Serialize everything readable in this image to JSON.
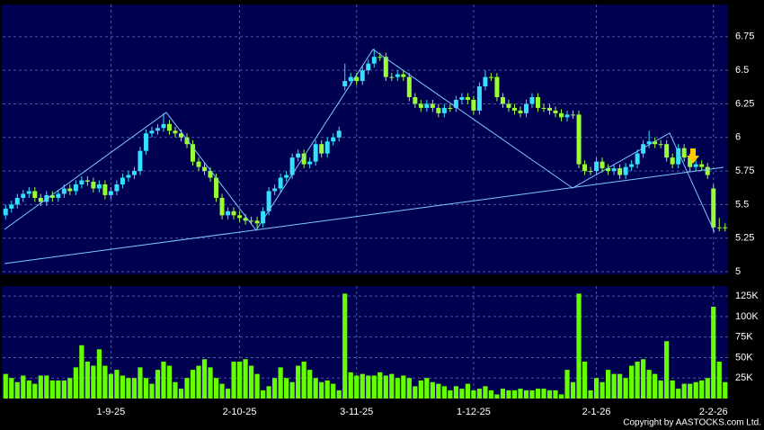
{
  "chart_data": {
    "type": "candlestick",
    "categories": [
      null,
      null,
      null,
      null,
      null,
      null,
      null,
      null,
      null,
      null,
      null,
      null,
      null,
      null,
      null,
      null,
      null,
      null,
      "1-9-25",
      null,
      null,
      null,
      null,
      null,
      null,
      null,
      null,
      null,
      null,
      null,
      null,
      null,
      null,
      null,
      null,
      null,
      null,
      null,
      null,
      null,
      "2-10-25",
      null,
      null,
      null,
      null,
      null,
      null,
      null,
      null,
      null,
      null,
      null,
      null,
      null,
      null,
      null,
      null,
      null,
      null,
      null,
      "3-11-25",
      null,
      null,
      null,
      null,
      null,
      null,
      null,
      null,
      null,
      null,
      null,
      null,
      null,
      null,
      null,
      null,
      null,
      null,
      null,
      "1-12-25",
      null,
      null,
      null,
      null,
      null,
      null,
      null,
      null,
      null,
      null,
      null,
      null,
      null,
      null,
      null,
      null,
      null,
      null,
      null,
      null,
      "2-1-26",
      null,
      null,
      null,
      null,
      null,
      null,
      null,
      null,
      null,
      null,
      null,
      null,
      null,
      null,
      null,
      null,
      null,
      null,
      null,
      "2-2-26",
      null,
      null
    ],
    "open": [
      5.42,
      5.47,
      5.5,
      5.55,
      5.58,
      5.6,
      5.55,
      5.52,
      5.57,
      5.55,
      5.58,
      5.62,
      5.6,
      5.65,
      5.68,
      5.67,
      5.62,
      5.65,
      5.57,
      5.6,
      5.65,
      5.7,
      5.72,
      5.75,
      5.9,
      6.03,
      6.05,
      6.07,
      6.1,
      6.05,
      6.03,
      6.0,
      5.95,
      5.82,
      5.78,
      5.75,
      5.7,
      5.55,
      5.42,
      5.45,
      5.42,
      5.4,
      5.38,
      5.38,
      5.36,
      5.45,
      5.6,
      5.62,
      5.7,
      5.72,
      5.85,
      5.88,
      5.8,
      5.82,
      5.95,
      5.88,
      5.97,
      6.0,
      6.38,
      6.42,
      6.45,
      6.42,
      6.5,
      6.55,
      6.6,
      6.6,
      6.45,
      6.45,
      6.47,
      6.45,
      6.3,
      6.25,
      6.22,
      6.25,
      6.22,
      6.18,
      6.22,
      6.22,
      6.28,
      6.3,
      6.28,
      6.2,
      6.38,
      6.45,
      6.45,
      6.3,
      6.25,
      6.22,
      6.2,
      6.18,
      6.25,
      6.3,
      6.22,
      6.22,
      6.2,
      6.18,
      6.15,
      6.17,
      6.17,
      5.8,
      5.75,
      5.75,
      5.82,
      5.77,
      5.75,
      5.77,
      5.72,
      5.78,
      5.8,
      5.88,
      5.95,
      5.97,
      5.95,
      5.95,
      5.85,
      5.8,
      5.92,
      5.85,
      5.78,
      5.8,
      5.78,
      5.62,
      5.33,
      5.33
    ],
    "high": [
      5.5,
      5.53,
      5.58,
      5.61,
      5.63,
      5.63,
      5.58,
      5.6,
      5.6,
      5.61,
      5.65,
      5.65,
      5.68,
      5.71,
      5.71,
      5.7,
      5.68,
      5.68,
      5.63,
      5.68,
      5.73,
      5.75,
      5.78,
      5.93,
      6.06,
      6.08,
      6.1,
      6.18,
      6.13,
      6.08,
      6.06,
      6.03,
      5.98,
      5.85,
      5.81,
      5.78,
      5.73,
      5.58,
      5.48,
      5.48,
      5.45,
      5.43,
      5.41,
      5.41,
      5.48,
      5.63,
      5.65,
      5.73,
      5.75,
      5.88,
      5.91,
      5.91,
      5.85,
      5.98,
      5.98,
      6.0,
      6.03,
      6.08,
      6.55,
      6.48,
      6.48,
      6.53,
      6.58,
      6.66,
      6.63,
      6.63,
      6.48,
      6.5,
      6.5,
      6.48,
      6.33,
      6.28,
      6.28,
      6.28,
      6.25,
      6.25,
      6.25,
      6.31,
      6.33,
      6.33,
      6.31,
      6.41,
      6.5,
      6.48,
      6.48,
      6.33,
      6.28,
      6.25,
      6.23,
      6.28,
      6.33,
      6.33,
      6.25,
      6.25,
      6.23,
      6.21,
      6.2,
      6.2,
      6.2,
      5.83,
      5.78,
      5.85,
      5.85,
      5.8,
      5.8,
      5.8,
      5.81,
      5.83,
      5.91,
      5.98,
      6.05,
      6.0,
      5.98,
      5.98,
      5.88,
      5.95,
      5.95,
      5.88,
      5.83,
      5.83,
      5.81,
      5.65,
      5.4,
      5.36
    ],
    "low": [
      5.39,
      5.44,
      5.47,
      5.52,
      5.55,
      5.52,
      5.49,
      5.49,
      5.52,
      5.52,
      5.55,
      5.57,
      5.57,
      5.62,
      5.64,
      5.59,
      5.59,
      5.54,
      5.54,
      5.57,
      5.62,
      5.67,
      5.69,
      5.72,
      5.87,
      6.0,
      6.02,
      6.04,
      6.02,
      6.0,
      5.97,
      5.92,
      5.79,
      5.75,
      5.72,
      5.67,
      5.52,
      5.39,
      5.39,
      5.39,
      5.37,
      5.35,
      5.35,
      5.32,
      5.33,
      5.42,
      5.57,
      5.59,
      5.67,
      5.69,
      5.82,
      5.77,
      5.77,
      5.79,
      5.85,
      5.85,
      5.94,
      5.97,
      6.35,
      6.39,
      6.39,
      6.39,
      6.47,
      6.52,
      6.57,
      6.42,
      6.42,
      6.42,
      6.42,
      6.27,
      6.22,
      6.19,
      6.19,
      6.19,
      6.15,
      6.15,
      6.19,
      6.19,
      6.25,
      6.25,
      6.17,
      6.17,
      6.35,
      6.42,
      6.27,
      6.22,
      6.19,
      6.17,
      6.15,
      6.15,
      6.22,
      6.19,
      6.19,
      6.17,
      6.15,
      6.12,
      6.12,
      6.14,
      5.77,
      5.72,
      5.72,
      5.72,
      5.74,
      5.72,
      5.72,
      5.69,
      5.69,
      5.75,
      5.77,
      5.85,
      5.92,
      5.92,
      5.92,
      5.82,
      5.77,
      5.77,
      5.82,
      5.75,
      5.75,
      5.75,
      5.69,
      5.3,
      5.3,
      5.3
    ],
    "close": [
      5.47,
      5.5,
      5.55,
      5.58,
      5.6,
      5.55,
      5.52,
      5.57,
      5.55,
      5.58,
      5.62,
      5.6,
      5.65,
      5.68,
      5.67,
      5.62,
      5.65,
      5.57,
      5.6,
      5.65,
      5.7,
      5.72,
      5.75,
      5.9,
      6.03,
      6.05,
      6.07,
      6.1,
      6.05,
      6.03,
      6.0,
      5.95,
      5.82,
      5.78,
      5.75,
      5.7,
      5.55,
      5.42,
      5.45,
      5.42,
      5.4,
      5.38,
      5.38,
      5.36,
      5.45,
      5.6,
      5.62,
      5.7,
      5.72,
      5.85,
      5.88,
      5.8,
      5.82,
      5.95,
      5.88,
      5.97,
      6.0,
      6.05,
      6.42,
      6.45,
      6.42,
      6.5,
      6.55,
      6.6,
      6.6,
      6.45,
      6.45,
      6.47,
      6.45,
      6.3,
      6.25,
      6.22,
      6.25,
      6.22,
      6.18,
      6.22,
      6.22,
      6.28,
      6.3,
      6.28,
      6.2,
      6.38,
      6.45,
      6.45,
      6.3,
      6.25,
      6.22,
      6.2,
      6.18,
      6.25,
      6.3,
      6.22,
      6.22,
      6.2,
      6.18,
      6.15,
      6.17,
      6.17,
      5.8,
      5.75,
      5.75,
      5.82,
      5.77,
      5.75,
      5.77,
      5.72,
      5.78,
      5.8,
      5.88,
      5.95,
      5.97,
      5.95,
      5.95,
      5.85,
      5.8,
      5.92,
      5.85,
      5.78,
      5.8,
      5.78,
      5.72,
      5.33,
      5.33,
      5.33
    ],
    "volume": [
      30000,
      25000,
      20000,
      28000,
      22000,
      18000,
      28000,
      28000,
      22000,
      22000,
      22000,
      25000,
      38000,
      65000,
      45000,
      40000,
      60000,
      40000,
      30000,
      35000,
      28000,
      25000,
      25000,
      38000,
      25000,
      18000,
      35000,
      45000,
      40000,
      20000,
      12000,
      25000,
      35000,
      40000,
      48000,
      38000,
      25000,
      18000,
      12000,
      45000,
      45000,
      48000,
      40000,
      30000,
      10000,
      15000,
      25000,
      38000,
      25000,
      20000,
      40000,
      45000,
      35000,
      25000,
      20000,
      22000,
      18000,
      10000,
      128000,
      32000,
      28000,
      30000,
      28000,
      28000,
      32000,
      28000,
      30000,
      25000,
      28000,
      25000,
      15000,
      22000,
      25000,
      20000,
      18000,
      15000,
      10000,
      15000,
      12000,
      18000,
      10000,
      12000,
      15000,
      10000,
      5000,
      12000,
      10000,
      10000,
      12000,
      10000,
      10000,
      12000,
      12000,
      10000,
      10000,
      5000,
      35000,
      20000,
      128000,
      45000,
      10000,
      25000,
      20000,
      35000,
      30000,
      30000,
      25000,
      40000,
      45000,
      48000,
      35000,
      30000,
      22000,
      70000,
      22000,
      12000,
      18000,
      18000,
      20000,
      22000,
      25000,
      112000,
      45000,
      20000
    ],
    "up_color": "#33e0ff",
    "down_color": "#99ff33",
    "volume_color": "#66ff00",
    "ylim": [
      4.98,
      6.99
    ],
    "yticks": [
      5,
      5.25,
      5.5,
      5.75,
      6,
      6.25,
      6.5,
      6.75
    ],
    "volume_ylim": [
      0,
      135000
    ],
    "volume_yticks": [
      {
        "value": 25000,
        "label": "25K"
      },
      {
        "value": 50000,
        "label": "50K"
      },
      {
        "value": 75000,
        "label": "75K"
      },
      {
        "value": 100000,
        "label": "100K"
      },
      {
        "value": 125000,
        "label": "125K"
      }
    ],
    "grid": true,
    "copyright": "Copyright by AASTOCKS.com Ltd."
  }
}
